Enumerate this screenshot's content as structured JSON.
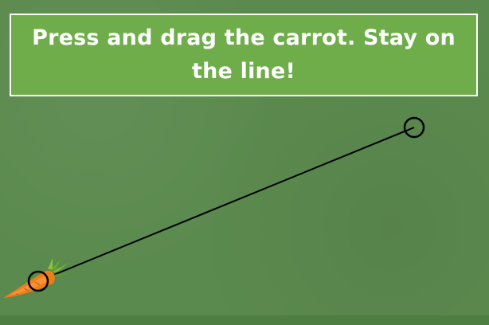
{
  "game": {
    "instruction": "Press and drag the carrot. Stay on the line!"
  },
  "icons": {
    "carrot": "carrot-icon",
    "start_marker": "start-circle-icon",
    "end_marker": "end-circle-icon"
  },
  "colors": {
    "background": "#5b8a4e",
    "banner": "#6fad4a",
    "banner_border": "#ffffff",
    "path_line": "#000000",
    "carrot": "#f07d1a",
    "carrot_leaves": "#6aa829"
  }
}
